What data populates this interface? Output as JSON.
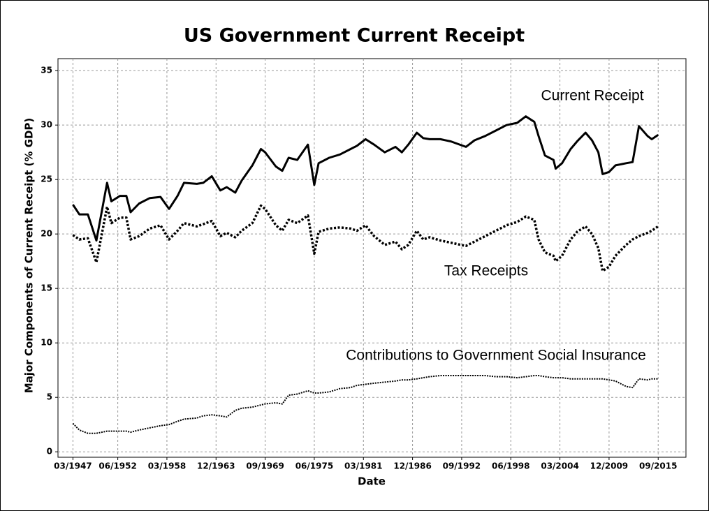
{
  "chart_data": {
    "type": "line",
    "title": "US Government Current Receipt",
    "x_label": "Date",
    "y_label": "Major Components of Current Receipt (% GDP)",
    "annotations": [
      "Current Receipt",
      "Tax Receipts",
      "Contributions to Government Social Insurance"
    ],
    "grid": true,
    "xlim": [
      "06/1945",
      "12/2018"
    ],
    "xticks": [
      "03/1947",
      "06/1952",
      "03/1958",
      "12/1963",
      "09/1969",
      "06/1975",
      "03/1981",
      "12/1986",
      "09/1992",
      "06/1998",
      "03/2004",
      "12/2009",
      "09/2015"
    ],
    "ylim": [
      -0.5,
      36.1
    ],
    "yticks": [
      0,
      5,
      10,
      15,
      20,
      25,
      30,
      35
    ],
    "x": [
      "03/1947",
      "12/1947",
      "12/1948",
      "12/1949",
      "03/1951",
      "09/1951",
      "09/1952",
      "06/1953",
      "12/1953",
      "12/1954",
      "03/1956",
      "06/1957",
      "06/1958",
      "06/1959",
      "03/1960",
      "09/1961",
      "06/1962",
      "06/1963",
      "06/1964",
      "03/1965",
      "03/1966",
      "12/1966",
      "03/1968",
      "03/1969",
      "09/1969",
      "12/1970",
      "09/1971",
      "06/1972",
      "06/1973",
      "09/1974",
      "06/1975",
      "12/1975",
      "03/1977",
      "06/1978",
      "09/1979",
      "06/1980",
      "06/1981",
      "06/1982",
      "09/1983",
      "12/1984",
      "09/1985",
      "06/1986",
      "06/1987",
      "03/1988",
      "12/1988",
      "03/1990",
      "06/1991",
      "03/1993",
      "03/1994",
      "06/1995",
      "09/1996",
      "12/1997",
      "03/1999",
      "03/2000",
      "03/2001",
      "09/2001",
      "06/2002",
      "06/2003",
      "09/2003",
      "06/2004",
      "06/2005",
      "03/2006",
      "03/2007",
      "12/2007",
      "09/2008",
      "03/2009",
      "12/2009",
      "09/2010",
      "12/2011",
      "09/2012",
      "06/2013",
      "06/2014",
      "12/2014",
      "09/2015"
    ],
    "series": [
      {
        "name": "Current Receipt",
        "color": "#000000",
        "style": "solid",
        "values": [
          22.7,
          21.8,
          21.8,
          19.4,
          24.7,
          23.0,
          23.5,
          23.5,
          22.0,
          22.8,
          23.3,
          23.4,
          22.3,
          23.5,
          24.7,
          24.6,
          24.7,
          25.3,
          24.0,
          24.3,
          23.8,
          24.9,
          26.3,
          27.8,
          27.5,
          26.2,
          25.8,
          27.0,
          26.8,
          28.2,
          24.5,
          26.5,
          27.0,
          27.3,
          27.8,
          28.1,
          28.7,
          28.2,
          27.5,
          28.0,
          27.5,
          28.2,
          29.3,
          28.8,
          28.7,
          28.7,
          28.5,
          28.0,
          28.6,
          29.0,
          29.5,
          30.0,
          30.2,
          30.8,
          30.3,
          29.0,
          27.2,
          26.8,
          26.0,
          26.5,
          27.8,
          28.5,
          29.3,
          28.6,
          27.5,
          25.5,
          25.7,
          26.3,
          26.5,
          26.6,
          29.9,
          29.0,
          28.7,
          29.1
        ]
      },
      {
        "name": "Tax Receipts",
        "color": "#000000",
        "style": "dotted",
        "values": [
          19.9,
          19.5,
          19.6,
          17.4,
          22.5,
          21.0,
          21.5,
          21.5,
          19.5,
          19.8,
          20.5,
          20.8,
          19.5,
          20.3,
          21.0,
          20.7,
          20.9,
          21.2,
          19.8,
          20.1,
          19.7,
          20.3,
          21.0,
          22.6,
          22.3,
          20.8,
          20.3,
          21.3,
          21.0,
          21.7,
          18.2,
          20.2,
          20.5,
          20.6,
          20.5,
          20.3,
          20.8,
          19.8,
          19.0,
          19.3,
          18.6,
          19.0,
          20.3,
          19.5,
          19.7,
          19.4,
          19.2,
          18.9,
          19.3,
          19.8,
          20.3,
          20.8,
          21.1,
          21.6,
          21.3,
          19.5,
          18.3,
          18.0,
          17.5,
          18.0,
          19.5,
          20.2,
          20.7,
          20.0,
          18.7,
          16.6,
          17.0,
          18.0,
          19.0,
          19.5,
          19.8,
          20.1,
          20.3,
          20.7
        ]
      },
      {
        "name": "Contributions to Government Social Insurance",
        "color": "#000000",
        "style": "fine-dotted",
        "values": [
          2.6,
          2.0,
          1.7,
          1.7,
          1.9,
          1.9,
          1.9,
          1.9,
          1.8,
          2.0,
          2.2,
          2.4,
          2.5,
          2.8,
          3.0,
          3.1,
          3.3,
          3.4,
          3.3,
          3.2,
          3.8,
          4.0,
          4.1,
          4.3,
          4.4,
          4.5,
          4.4,
          5.2,
          5.3,
          5.6,
          5.4,
          5.4,
          5.5,
          5.8,
          5.9,
          6.1,
          6.2,
          6.3,
          6.4,
          6.5,
          6.6,
          6.6,
          6.7,
          6.8,
          6.9,
          7.0,
          7.0,
          7.0,
          7.0,
          7.0,
          6.9,
          6.9,
          6.8,
          6.9,
          7.0,
          7.0,
          6.9,
          6.8,
          6.8,
          6.8,
          6.7,
          6.7,
          6.7,
          6.7,
          6.7,
          6.7,
          6.6,
          6.5,
          6.0,
          5.9,
          6.7,
          6.6,
          6.7,
          6.7
        ]
      }
    ]
  }
}
